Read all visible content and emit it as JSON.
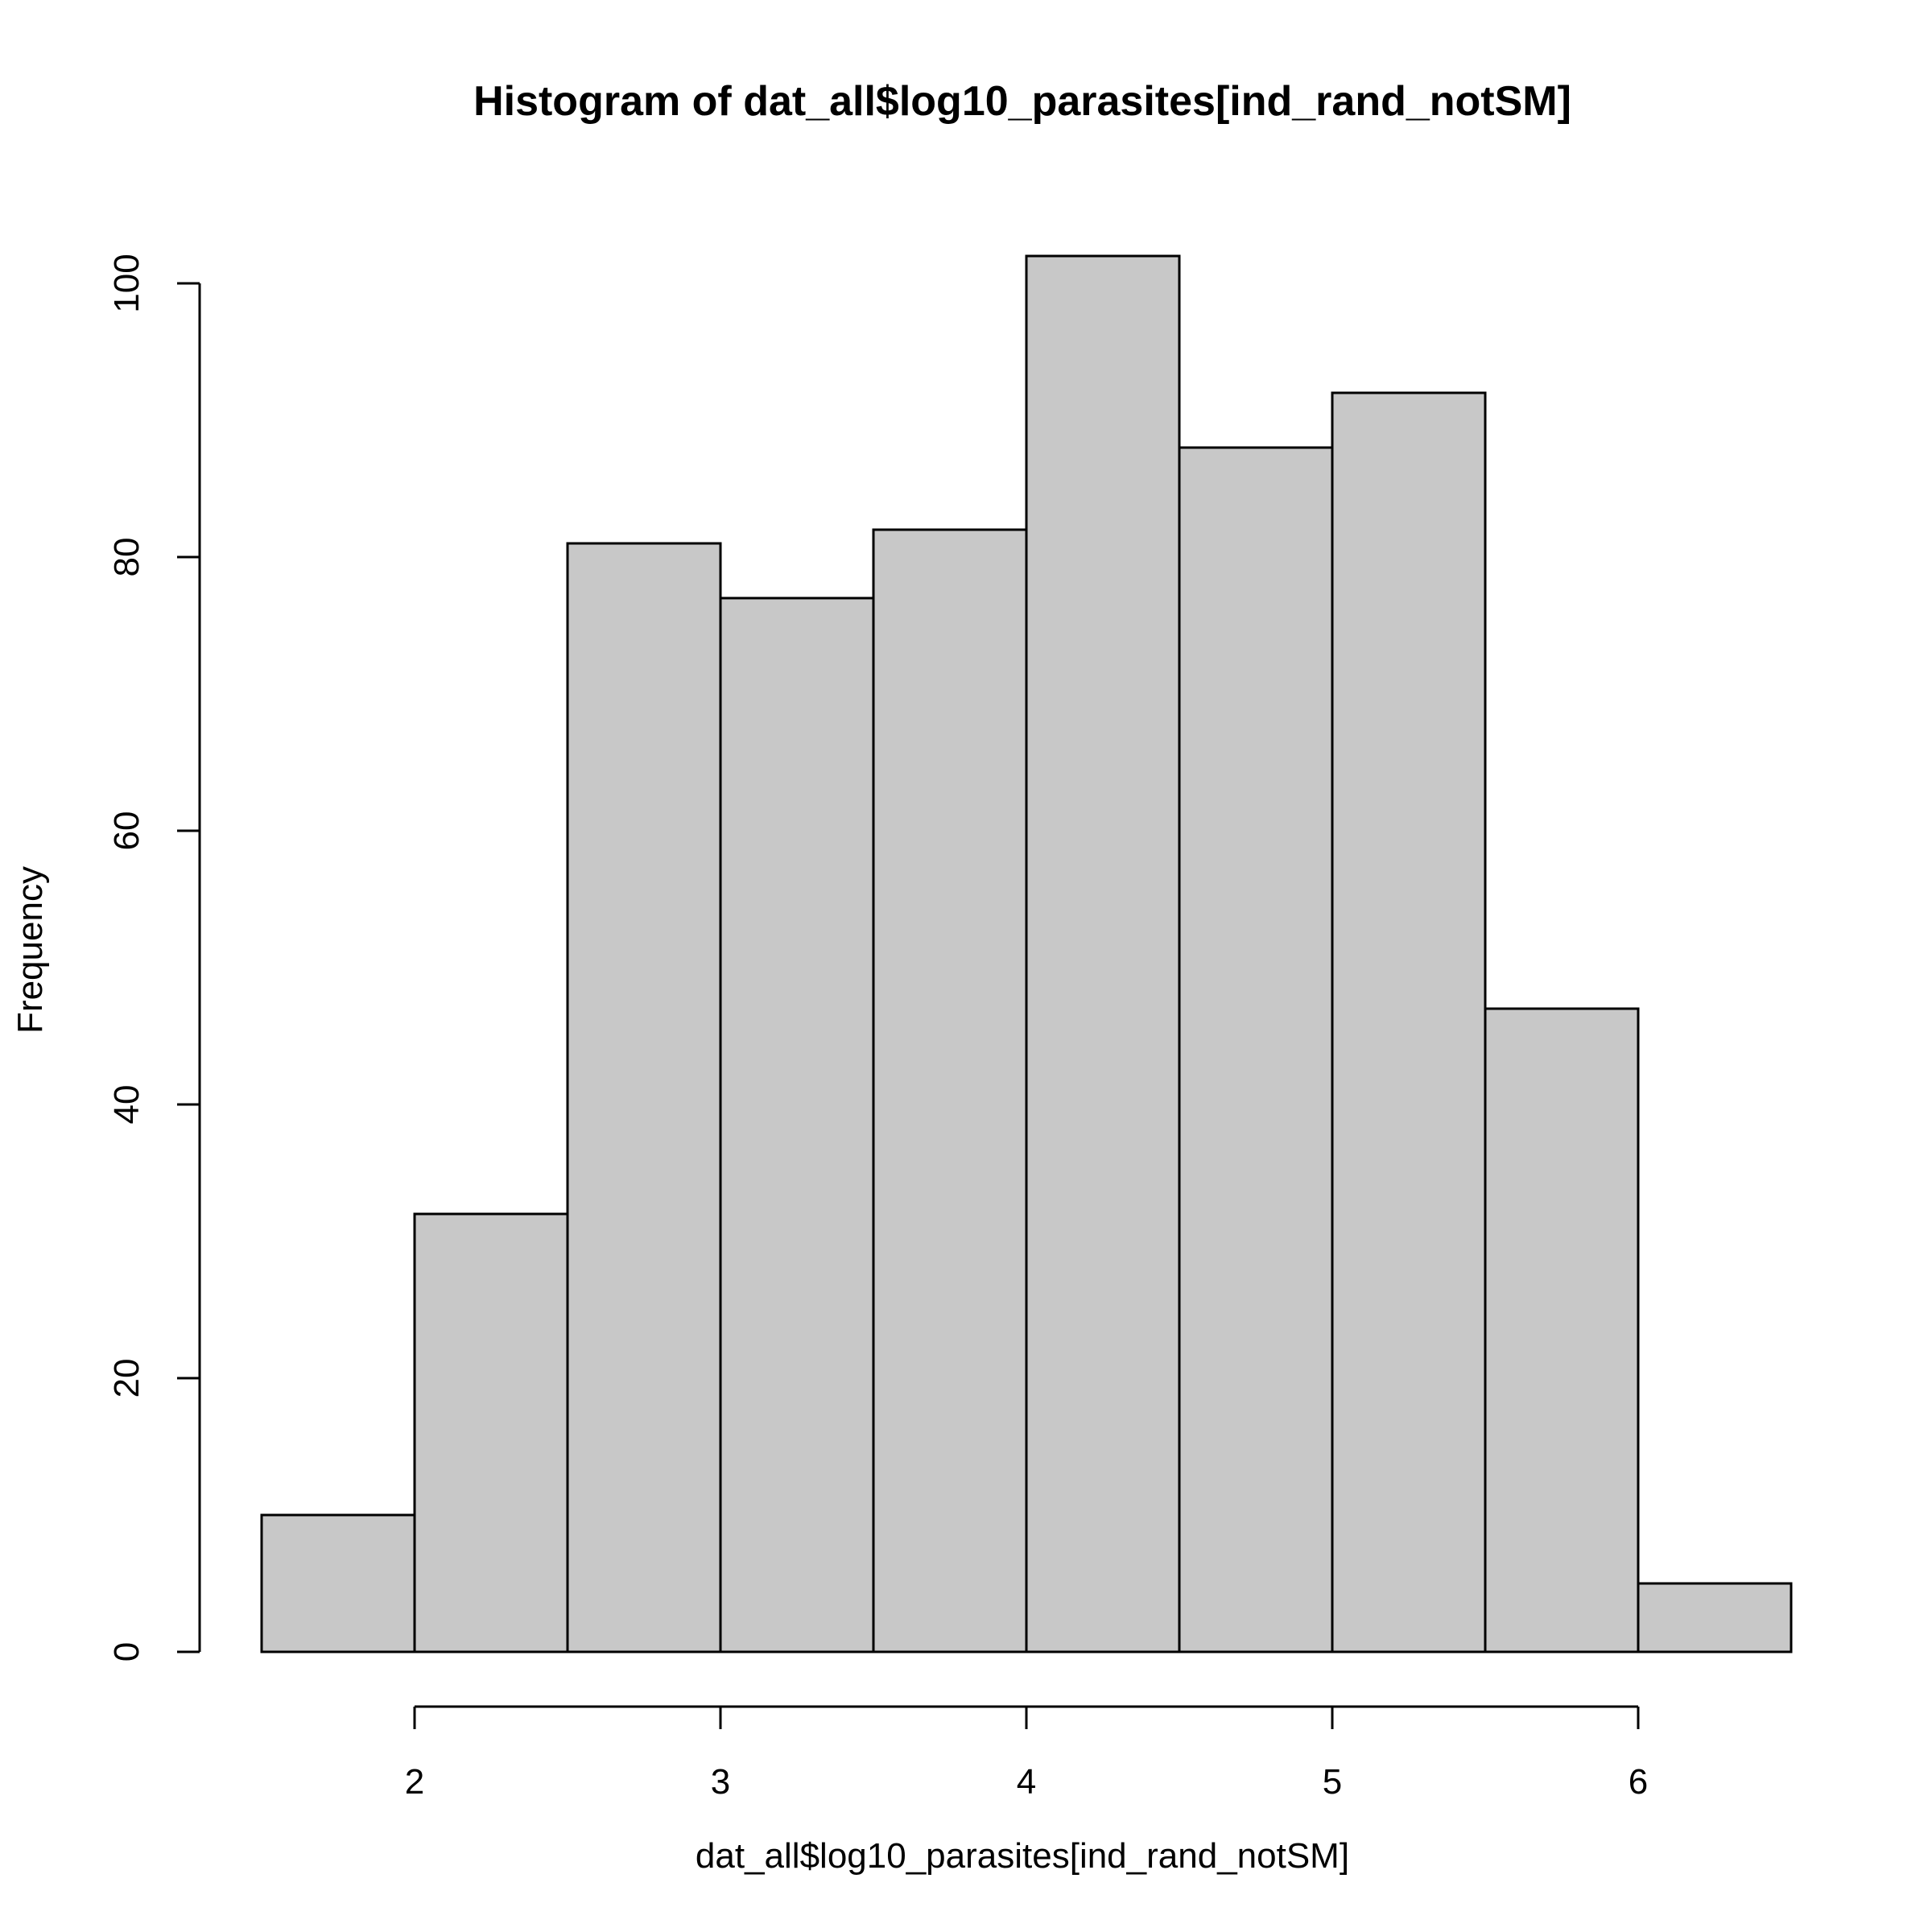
{
  "chart_data": {
    "type": "bar",
    "title": "Histogram of dat_all$log10_parasites[ind_rand_notSM]",
    "xlabel": "dat_all$log10_parasites[ind_rand_notSM]",
    "ylabel": "Frequency",
    "bins": [
      {
        "start": 1.5,
        "end": 2.0,
        "count": 10
      },
      {
        "start": 2.0,
        "end": 2.5,
        "count": 32
      },
      {
        "start": 2.5,
        "end": 3.0,
        "count": 81
      },
      {
        "start": 3.0,
        "end": 3.5,
        "count": 77
      },
      {
        "start": 3.5,
        "end": 4.0,
        "count": 82
      },
      {
        "start": 4.0,
        "end": 4.5,
        "count": 102
      },
      {
        "start": 4.5,
        "end": 5.0,
        "count": 88
      },
      {
        "start": 5.0,
        "end": 5.5,
        "count": 92
      },
      {
        "start": 5.5,
        "end": 6.0,
        "count": 47
      },
      {
        "start": 6.0,
        "end": 6.5,
        "count": 5
      }
    ],
    "xlim": [
      1.5,
      6.5
    ],
    "ylim": [
      0,
      102
    ],
    "x_ticks": [
      "2",
      "3",
      "4",
      "5",
      "6"
    ],
    "y_ticks": [
      "0",
      "20",
      "40",
      "60",
      "80",
      "100"
    ],
    "bar_color": "#c8c8c8",
    "grid": false,
    "legend": "none"
  }
}
